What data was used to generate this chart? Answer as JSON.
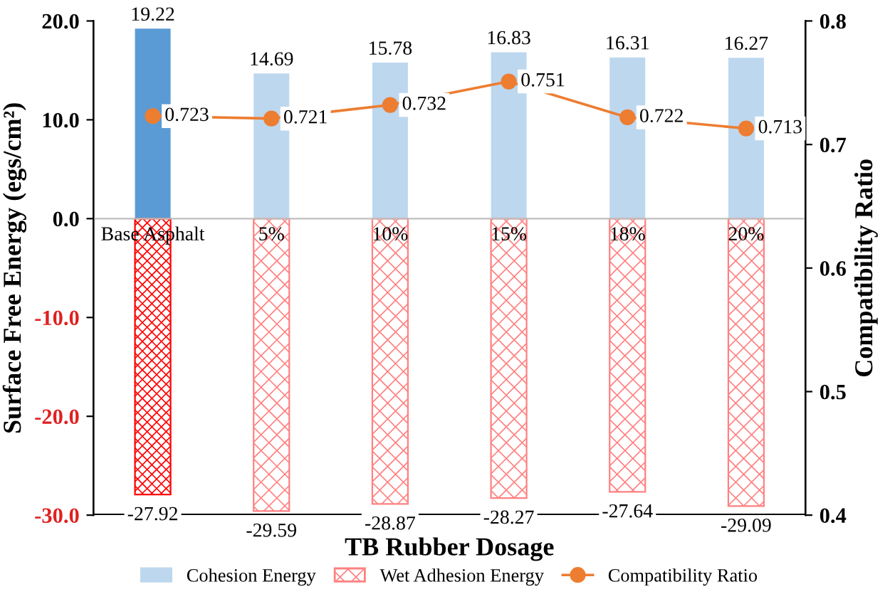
{
  "chart_data": {
    "type": "bar",
    "stacked": true,
    "xlabel": "TB Rubber Dosage",
    "ylabel": "Surface Free Energy (egs/cm²)",
    "y2label": "Compatibility Ratio",
    "categories": [
      "Base Asphalt",
      "5%",
      "10%",
      "15%",
      "18%",
      "20%"
    ],
    "series": [
      {
        "name": "Cohesion Energy",
        "colors": [
          "#5b9bd5",
          "#bdd7ee",
          "#bdd7ee",
          "#bdd7ee",
          "#bdd7ee",
          "#bdd7ee"
        ],
        "color": "#bdd7ee",
        "values": [
          19.22,
          14.69,
          15.78,
          16.83,
          16.31,
          16.27
        ]
      },
      {
        "name": "Wet Adhesion Energy",
        "colors": [
          "#ff0000",
          "#ff8080",
          "#ff8080",
          "#ff8080",
          "#ff8080",
          "#ff8080"
        ],
        "color": "#ff8080",
        "values": [
          -27.92,
          -29.59,
          -28.87,
          -28.27,
          -27.64,
          -29.09
        ]
      },
      {
        "name": "Compatibility Ratio",
        "type": "line",
        "axis": "y2",
        "color": "#ed7d31",
        "marker": "circle",
        "values": [
          0.723,
          0.721,
          0.732,
          0.751,
          0.722,
          0.713
        ]
      }
    ],
    "data_labels": true,
    "ylim": [
      -30,
      20
    ],
    "yticks": [
      {
        "value": -30,
        "label": "-30.0"
      },
      {
        "value": -20,
        "label": "-20.0"
      },
      {
        "value": -10,
        "label": "-10.0"
      },
      {
        "value": 0,
        "label": "0.0"
      },
      {
        "value": 10,
        "label": "10.0"
      },
      {
        "value": 20,
        "label": "20.0"
      }
    ],
    "y2lim": [
      0.4,
      0.8
    ],
    "y2ticks": [
      0.4,
      0.5,
      0.6,
      0.7,
      0.8
    ],
    "grid": false,
    "legend": "bottom"
  }
}
